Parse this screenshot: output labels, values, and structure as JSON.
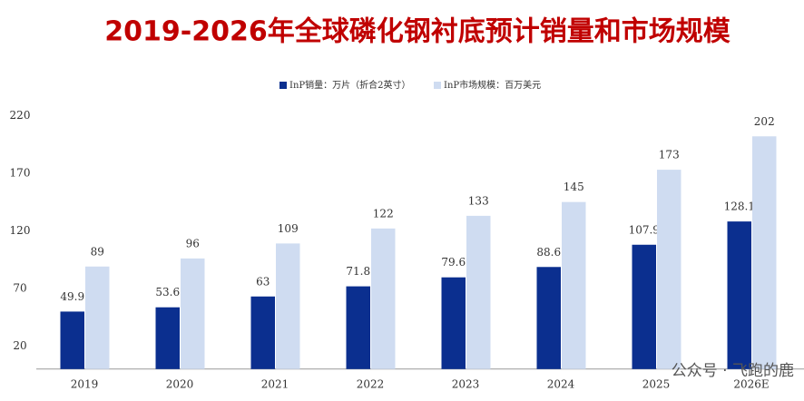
{
  "chart_data": {
    "type": "bar",
    "title": "2019-2026年全球磷化钢衬底预计销量和市场规模",
    "categories": [
      "2019",
      "2020",
      "2021",
      "2022",
      "2023",
      "2024",
      "2025",
      "2026E"
    ],
    "series": [
      {
        "name": "InP销量：万片（折合2英寸）",
        "color": "#0b2f8f",
        "values": [
          49.9,
          53.6,
          63,
          71.8,
          79.6,
          88.6,
          107.9,
          128.1
        ]
      },
      {
        "name": "InP市场规模：百万美元",
        "color": "#cfdcf1",
        "values": [
          89,
          96,
          109,
          122,
          133,
          145,
          173,
          202
        ]
      }
    ],
    "ylim": [
      0,
      220
    ],
    "yticks": [
      20,
      70,
      120,
      170,
      220
    ],
    "grid": false,
    "legend": "top",
    "watermark": "公众号 · 飞跑的鹿"
  }
}
